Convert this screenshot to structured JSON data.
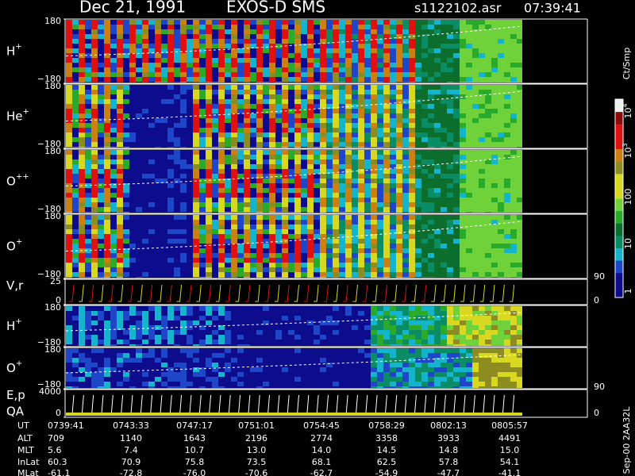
{
  "header": {
    "date": "Dec 21, 1991",
    "instrument": "EXOS-D SMS",
    "file": "s1122102.asr",
    "time": "07:39:41"
  },
  "panels": [
    {
      "label": "H",
      "sup": "+",
      "top": "180",
      "bottom": "−180"
    },
    {
      "label": "He",
      "sup": "+",
      "top": "180",
      "bottom": "−180"
    },
    {
      "label": "O",
      "sup": "++",
      "top": "180",
      "bottom": "−180"
    },
    {
      "label": "O",
      "sup": "+",
      "top": "180",
      "bottom": "−180"
    },
    {
      "label": "V,r",
      "top": "25",
      "bottom": "0",
      "right": [
        "90",
        "0"
      ]
    },
    {
      "label": "H",
      "sup": "+",
      "top": "180",
      "bottom": "−180"
    },
    {
      "label": "O",
      "sup": "+",
      "top": "180",
      "bottom": "−180"
    },
    {
      "label": "E,p",
      "sublabel": "QA",
      "top": "4000",
      "bottom": "0",
      "right": [
        "90",
        "0"
      ]
    }
  ],
  "colorbar": {
    "unit": "Ct/Smp",
    "ticks": [
      {
        "base": "10",
        "sup": "4"
      },
      {
        "base": "10",
        "sup": "3"
      },
      "100",
      "10",
      "1"
    ]
  },
  "footer": "Sep-00 2AA32L",
  "ephemeris": {
    "rows": [
      {
        "label": "UT",
        "values": [
          "0739:41",
          "0743:33",
          "0747:17",
          "0751:01",
          "0754:45",
          "0758:29",
          "0802:13",
          "0805:57"
        ]
      },
      {
        "label": "ALT",
        "values": [
          "709",
          "1140",
          "1643",
          "2196",
          "2774",
          "3358",
          "3933",
          "4491"
        ]
      },
      {
        "label": "MLT",
        "values": [
          "5.6",
          "7.4",
          "10.7",
          "13.0",
          "14.0",
          "14.5",
          "14.8",
          "15.0"
        ]
      },
      {
        "label": "InLat",
        "values": [
          "60.3",
          "70.9",
          "75.8",
          "73.5",
          "68.1",
          "62.5",
          "57.8",
          "54.1"
        ]
      },
      {
        "label": "MLat",
        "values": [
          "-61.1",
          "-72.8",
          "-76.0",
          "-70.6",
          "-62.7",
          "-54.9",
          "-47.7",
          "-41.1"
        ]
      }
    ]
  }
}
